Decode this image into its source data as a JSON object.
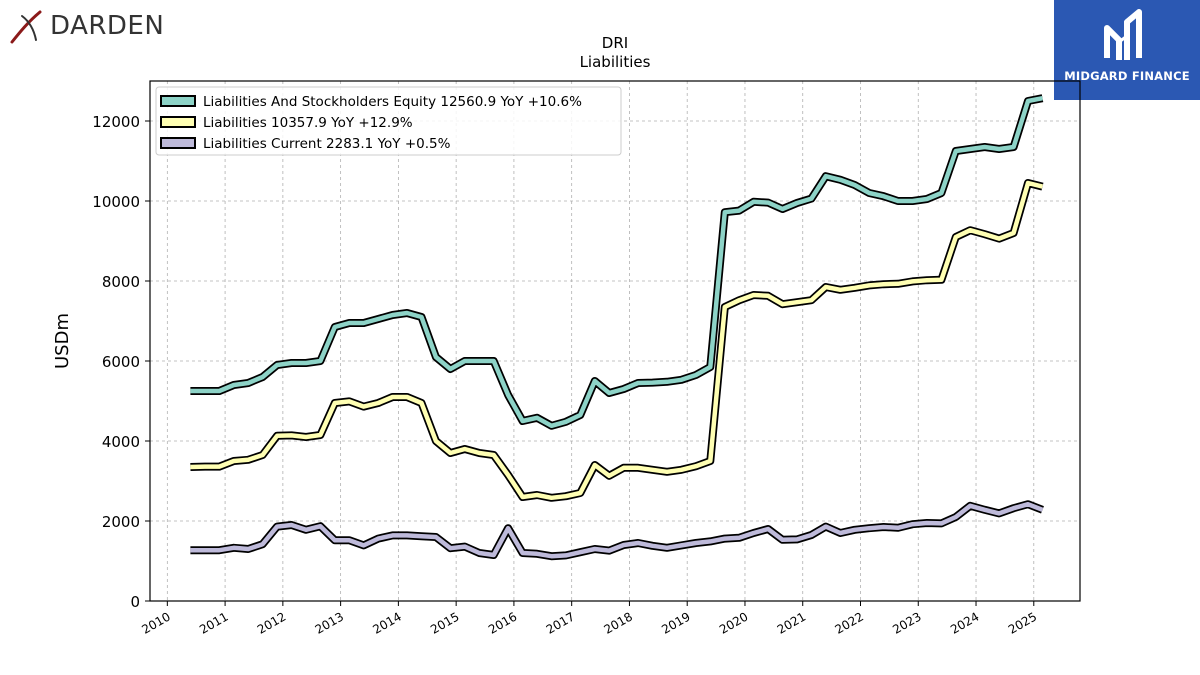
{
  "brand": {
    "left_name": "DARDEN",
    "right_name": "MIDGARD FINANCE",
    "left_logo_icon": "darden-swoosh-icon",
    "right_logo_icon": "midgard-mark-icon"
  },
  "chart_data": {
    "type": "line",
    "title": "DRI",
    "subtitle": "Liabilities",
    "ylabel": "USDm",
    "xlabel": "",
    "xlim": [
      2009.7,
      2025.8
    ],
    "ylim": [
      0,
      13000
    ],
    "yticks": [
      0,
      2000,
      4000,
      6000,
      8000,
      10000,
      12000
    ],
    "xticks": [
      2010,
      2011,
      2012,
      2013,
      2014,
      2015,
      2016,
      2017,
      2018,
      2019,
      2020,
      2021,
      2022,
      2023,
      2024,
      2025
    ],
    "grid": true,
    "legend_position": "top-left",
    "x": [
      2010.4,
      2010.65,
      2010.9,
      2011.15,
      2011.4,
      2011.65,
      2011.9,
      2012.15,
      2012.4,
      2012.65,
      2012.9,
      2013.15,
      2013.4,
      2013.65,
      2013.9,
      2014.15,
      2014.4,
      2014.65,
      2014.9,
      2015.15,
      2015.4,
      2015.65,
      2015.9,
      2016.15,
      2016.4,
      2016.65,
      2016.9,
      2017.15,
      2017.4,
      2017.65,
      2017.9,
      2018.15,
      2018.4,
      2018.65,
      2018.9,
      2019.15,
      2019.4,
      2019.65,
      2019.9,
      2020.15,
      2020.4,
      2020.65,
      2020.9,
      2021.15,
      2021.4,
      2021.65,
      2021.9,
      2022.15,
      2022.4,
      2022.65,
      2022.9,
      2023.15,
      2023.4,
      2023.65,
      2023.9,
      2024.15,
      2024.4,
      2024.65,
      2024.9,
      2025.15
    ],
    "series": [
      {
        "name": "Liabilities And Stockholders Equity",
        "legend": "Liabilities And Stockholders Equity  12560.9 YoY +10.6%",
        "color": "#8dd3c7",
        "values": [
          5250,
          5250,
          5250,
          5400,
          5450,
          5600,
          5900,
          5950,
          5950,
          6000,
          6850,
          6950,
          6950,
          7050,
          7150,
          7200,
          7100,
          6100,
          5800,
          6000,
          6000,
          6000,
          5150,
          4500,
          4580,
          4380,
          4480,
          4650,
          5500,
          5200,
          5300,
          5450,
          5460,
          5480,
          5530,
          5650,
          5850,
          9720,
          9760,
          9980,
          9960,
          9800,
          9950,
          10060,
          10620,
          10530,
          10400,
          10200,
          10120,
          10000,
          10000,
          10050,
          10200,
          11250,
          11300,
          11350,
          11300,
          11350,
          12500,
          12570
        ]
      },
      {
        "name": "Liabilities",
        "legend": "Liabilities  10357.9 YoY +12.9%",
        "color": "#ffffb3",
        "values": [
          3350,
          3360,
          3360,
          3500,
          3530,
          3650,
          4130,
          4140,
          4100,
          4150,
          4950,
          4990,
          4860,
          4950,
          5100,
          5100,
          4950,
          4000,
          3700,
          3800,
          3700,
          3650,
          3150,
          2600,
          2650,
          2580,
          2620,
          2700,
          3400,
          3130,
          3330,
          3330,
          3280,
          3230,
          3280,
          3370,
          3500,
          7350,
          7520,
          7650,
          7630,
          7420,
          7470,
          7520,
          7850,
          7780,
          7830,
          7890,
          7920,
          7930,
          7990,
          8020,
          8030,
          9100,
          9270,
          9170,
          9060,
          9200,
          10450,
          10360
        ]
      },
      {
        "name": "Liabilities Current",
        "legend": "Liabilities Current  2283.1 YoY +0.5%",
        "color": "#bebada",
        "values": [
          1270,
          1270,
          1270,
          1330,
          1300,
          1420,
          1860,
          1900,
          1780,
          1870,
          1520,
          1520,
          1390,
          1560,
          1640,
          1640,
          1620,
          1600,
          1320,
          1360,
          1200,
          1150,
          1820,
          1200,
          1180,
          1120,
          1140,
          1220,
          1300,
          1260,
          1400,
          1450,
          1380,
          1330,
          1390,
          1450,
          1490,
          1560,
          1580,
          1700,
          1800,
          1530,
          1540,
          1650,
          1860,
          1700,
          1780,
          1820,
          1850,
          1830,
          1920,
          1950,
          1940,
          2100,
          2380,
          2280,
          2190,
          2320,
          2420,
          2280
        ]
      }
    ]
  }
}
